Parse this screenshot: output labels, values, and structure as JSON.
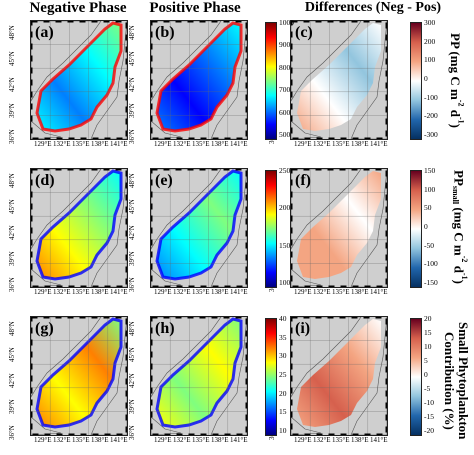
{
  "column_titles": [
    "Negative Phase",
    "Positive Phase",
    "Differences (Neg - Pos)"
  ],
  "panel_labels": [
    "(a)",
    "(b)",
    "(c)",
    "(d)",
    "(e)",
    "(f)",
    "(g)",
    "(h)",
    "(i)"
  ],
  "lat_ticks": [
    "48°N",
    "45°N",
    "42°N",
    "39°N",
    "36°N"
  ],
  "lon_ticks": [
    "129°E",
    "132°E",
    "135°E",
    "138°E",
    "141°E"
  ],
  "colorbars": [
    {
      "ticks": [
        "1000",
        "900",
        "800",
        "700",
        "600",
        "500"
      ],
      "colormap": "jet"
    },
    {
      "ticks": [
        "300",
        "200",
        "100",
        "0",
        "-100",
        "-200",
        "-300"
      ],
      "colormap": "diverging"
    },
    {
      "ticks": [
        "250",
        "200",
        "150",
        "100"
      ],
      "colormap": "jet"
    },
    {
      "ticks": [
        "150",
        "100",
        "50",
        "0",
        "-50",
        "-100",
        "-150"
      ],
      "colormap": "diverging"
    },
    {
      "ticks": [
        "40",
        "35",
        "30",
        "25",
        "20",
        "15",
        "10"
      ],
      "colormap": "jet"
    },
    {
      "ticks": [
        "20",
        "15",
        "10",
        "5",
        "0",
        "-5",
        "-10",
        "-15",
        "-20"
      ],
      "colormap": "diverging"
    }
  ],
  "row_titles": [
    {
      "main": "PP (mg C m",
      "sup1": "-2",
      "mid": " d",
      "sup2": "-1",
      "end": ")"
    },
    {
      "main": "PP",
      "sub": "small",
      "rest": " (mg C m",
      "sup1": "-2",
      "mid": " d",
      "sup2": "-1",
      "end": ")"
    },
    {
      "line1": "Small Phytoplankton",
      "line2": "Contribution (%)"
    }
  ],
  "colors": {
    "land": "#cfcfcf",
    "jet": [
      "#00007f",
      "#0000ff",
      "#007fff",
      "#00ffff",
      "#7fff7f",
      "#ffff00",
      "#ff7f00",
      "#ff0000",
      "#7f0000"
    ],
    "diverging": [
      "#053061",
      "#2166ac",
      "#92c5de",
      "#ffffff",
      "#f4a582",
      "#d6604d",
      "#67001f"
    ]
  }
}
